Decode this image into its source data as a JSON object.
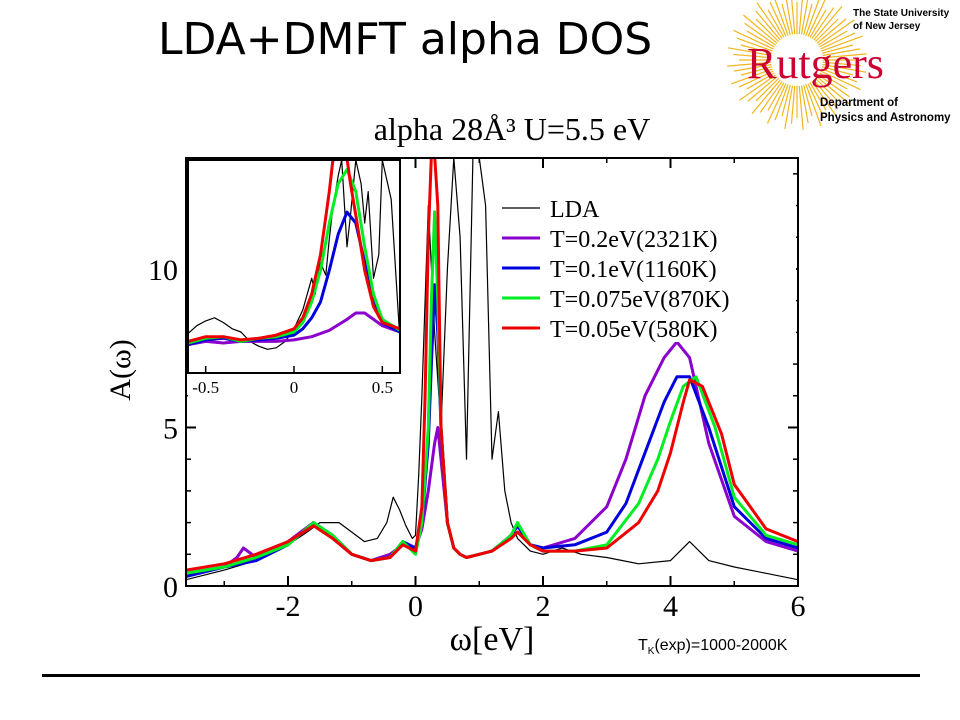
{
  "slide": {
    "title": "LDA+DMFT alpha DOS",
    "note_prefix": "T",
    "note_sub": "K",
    "note_suffix": "(exp)=1000-2000K"
  },
  "logo": {
    "line1": "The State University",
    "line2": "of New Jersey",
    "wordmark": "Rutgers",
    "dept1": "Department of",
    "dept2": "Physics and Astronomy",
    "colors": {
      "wordmark": "#cc0033",
      "sun": "#f2b51c",
      "text": "#000000"
    }
  },
  "chart_data": [
    {
      "type": "line",
      "title": "alpha  28Å³  U=5.5 eV",
      "xlabel": "ω[eV]",
      "ylabel": "A(ω)",
      "xlim": [
        -3.6,
        6.0
      ],
      "ylim": [
        0,
        13.5
      ],
      "xticks": [
        -2,
        0,
        2,
        4,
        6
      ],
      "yticks": [
        0,
        5,
        10
      ],
      "legend_position": "top-right",
      "series": [
        {
          "name": "LDA",
          "color": "#000000",
          "x": [
            -3.6,
            -3.0,
            -2.5,
            -2.0,
            -1.7,
            -1.5,
            -1.2,
            -1.0,
            -0.8,
            -0.6,
            -0.45,
            -0.35,
            -0.25,
            -0.15,
            -0.05,
            0.0,
            0.05,
            0.1,
            0.2,
            0.3,
            0.4,
            0.5,
            0.6,
            0.7,
            0.8,
            0.9,
            1.0,
            1.1,
            1.2,
            1.3,
            1.4,
            1.5,
            1.6,
            1.8,
            2.0,
            2.3,
            2.6,
            3.0,
            3.5,
            4.0,
            4.3,
            4.6,
            5.0,
            5.5,
            6.0
          ],
          "y": [
            0.2,
            0.5,
            0.8,
            1.3,
            1.7,
            2.0,
            2.0,
            1.7,
            1.4,
            1.5,
            2.0,
            2.8,
            2.4,
            1.9,
            1.5,
            1.6,
            3.5,
            6.0,
            12.0,
            8.0,
            5.0,
            10.0,
            13.5,
            11.0,
            4.0,
            13.5,
            13.5,
            12.0,
            4.0,
            5.5,
            3.0,
            2.0,
            1.5,
            1.1,
            1.0,
            1.2,
            1.0,
            0.9,
            0.7,
            0.8,
            1.4,
            0.8,
            0.6,
            0.4,
            0.2
          ]
        },
        {
          "name": "T=0.2eV(2321K)",
          "color": "#8b00cc",
          "x": [
            -3.6,
            -3.0,
            -2.8,
            -2.7,
            -2.5,
            -2.0,
            -1.6,
            -1.3,
            -1.0,
            -0.7,
            -0.4,
            -0.2,
            0.0,
            0.1,
            0.2,
            0.3,
            0.35,
            0.4,
            0.5,
            0.6,
            0.7,
            0.8,
            1.0,
            1.2,
            1.5,
            1.6,
            1.8,
            2.0,
            2.5,
            3.0,
            3.3,
            3.6,
            3.9,
            4.1,
            4.3,
            4.6,
            5.0,
            5.5,
            6.0
          ],
          "y": [
            0.4,
            0.6,
            0.9,
            1.2,
            0.9,
            1.4,
            2.0,
            1.5,
            1.0,
            0.8,
            1.0,
            1.3,
            1.2,
            1.8,
            3.0,
            4.5,
            5.0,
            4.0,
            2.0,
            1.2,
            1.0,
            0.9,
            1.0,
            1.1,
            1.6,
            1.9,
            1.3,
            1.2,
            1.5,
            2.5,
            4.0,
            6.0,
            7.2,
            7.7,
            7.2,
            4.5,
            2.2,
            1.4,
            1.1
          ]
        },
        {
          "name": "T=0.1eV(1160K)",
          "color": "#0000dd",
          "x": [
            -3.6,
            -3.0,
            -2.5,
            -2.0,
            -1.6,
            -1.3,
            -1.0,
            -0.7,
            -0.4,
            -0.2,
            0.0,
            0.1,
            0.2,
            0.25,
            0.3,
            0.35,
            0.4,
            0.5,
            0.6,
            0.7,
            0.8,
            1.0,
            1.2,
            1.5,
            1.6,
            1.8,
            2.0,
            2.5,
            3.0,
            3.3,
            3.6,
            3.9,
            4.1,
            4.3,
            4.6,
            5.0,
            5.5,
            6.0
          ],
          "y": [
            0.3,
            0.6,
            0.8,
            1.3,
            2.0,
            1.6,
            1.0,
            0.8,
            0.9,
            1.4,
            1.2,
            2.0,
            4.5,
            7.0,
            9.5,
            8.0,
            5.0,
            2.0,
            1.2,
            1.0,
            0.9,
            1.0,
            1.1,
            1.6,
            1.9,
            1.3,
            1.2,
            1.3,
            1.7,
            2.6,
            4.2,
            5.8,
            6.6,
            6.6,
            5.0,
            2.5,
            1.5,
            1.2
          ]
        },
        {
          "name": "T=0.075eV(870K)",
          "color": "#00ee22",
          "x": [
            -3.6,
            -3.0,
            -2.5,
            -2.0,
            -1.6,
            -1.3,
            -1.0,
            -0.7,
            -0.4,
            -0.2,
            0.0,
            0.1,
            0.2,
            0.25,
            0.3,
            0.35,
            0.4,
            0.5,
            0.6,
            0.7,
            0.8,
            1.0,
            1.2,
            1.5,
            1.6,
            1.8,
            2.0,
            2.5,
            3.0,
            3.5,
            3.8,
            4.0,
            4.2,
            4.4,
            4.7,
            5.0,
            5.5,
            6.0
          ],
          "y": [
            0.4,
            0.6,
            0.9,
            1.3,
            2.0,
            1.6,
            1.0,
            0.8,
            0.9,
            1.4,
            1.0,
            2.0,
            5.0,
            9.0,
            11.8,
            9.0,
            5.0,
            2.0,
            1.2,
            1.0,
            0.9,
            1.0,
            1.1,
            1.6,
            2.0,
            1.3,
            1.1,
            1.1,
            1.3,
            2.6,
            4.0,
            5.2,
            6.3,
            6.6,
            5.0,
            2.8,
            1.6,
            1.3
          ]
        },
        {
          "name": "T=0.05eV(580K)",
          "color": "#ee0000",
          "x": [
            -3.6,
            -3.0,
            -2.5,
            -2.0,
            -1.6,
            -1.3,
            -1.0,
            -0.7,
            -0.4,
            -0.2,
            0.0,
            0.1,
            0.15,
            0.2,
            0.25,
            0.3,
            0.35,
            0.4,
            0.5,
            0.6,
            0.7,
            0.8,
            1.0,
            1.2,
            1.5,
            1.6,
            1.8,
            2.0,
            2.5,
            3.0,
            3.5,
            3.8,
            4.0,
            4.2,
            4.3,
            4.5,
            4.8,
            5.0,
            5.5,
            6.0
          ],
          "y": [
            0.5,
            0.7,
            1.0,
            1.4,
            1.9,
            1.5,
            1.0,
            0.8,
            0.9,
            1.3,
            1.1,
            2.5,
            6.0,
            11.0,
            13.6,
            13.6,
            12.0,
            5.0,
            2.0,
            1.2,
            1.0,
            0.9,
            1.0,
            1.1,
            1.5,
            1.7,
            1.3,
            1.1,
            1.1,
            1.2,
            2.0,
            3.0,
            4.2,
            5.8,
            6.5,
            6.3,
            4.8,
            3.2,
            1.8,
            1.4
          ]
        }
      ]
    },
    {
      "type": "line",
      "title": "",
      "xlim": [
        -0.6,
        0.6
      ],
      "ylim": [
        0,
        13.5
      ],
      "xticks": [
        -0.5,
        0,
        0.5
      ],
      "xtick_labels": [
        "-0.5",
        "0",
        "0.5"
      ],
      "series": [
        {
          "color": "#000000",
          "x": [
            -0.6,
            -0.55,
            -0.5,
            -0.45,
            -0.4,
            -0.35,
            -0.3,
            -0.25,
            -0.2,
            -0.15,
            -0.1,
            -0.05,
            0.0,
            0.05,
            0.1,
            0.12,
            0.15,
            0.18,
            0.2,
            0.22,
            0.25,
            0.27,
            0.3,
            0.32,
            0.35,
            0.38,
            0.4,
            0.42,
            0.45,
            0.48,
            0.5,
            0.55,
            0.6
          ],
          "y": [
            2.5,
            3.0,
            3.3,
            3.5,
            3.2,
            2.8,
            2.6,
            2.0,
            1.7,
            1.5,
            1.6,
            2.0,
            2.8,
            4.0,
            6.0,
            5.0,
            7.0,
            6.2,
            8.5,
            10.5,
            12.5,
            13.5,
            8.0,
            10.0,
            13.5,
            12.0,
            9.5,
            11.5,
            6.0,
            7.5,
            13.5,
            11.0,
            2.0
          ]
        },
        {
          "color": "#8b00cc",
          "x": [
            -0.6,
            -0.5,
            -0.4,
            -0.3,
            -0.2,
            -0.1,
            0.0,
            0.1,
            0.2,
            0.3,
            0.35,
            0.4,
            0.5,
            0.6
          ],
          "y": [
            1.8,
            2.0,
            1.9,
            2.0,
            2.0,
            2.0,
            2.1,
            2.3,
            2.7,
            3.4,
            3.8,
            3.8,
            3.0,
            2.6
          ]
        },
        {
          "color": "#0000dd",
          "x": [
            -0.6,
            -0.5,
            -0.4,
            -0.3,
            -0.2,
            -0.1,
            0.0,
            0.05,
            0.1,
            0.15,
            0.2,
            0.25,
            0.3,
            0.35,
            0.4,
            0.45,
            0.5,
            0.6
          ],
          "y": [
            1.8,
            2.1,
            2.2,
            2.0,
            2.1,
            2.2,
            2.4,
            2.8,
            3.5,
            4.5,
            6.5,
            8.8,
            10.2,
            9.5,
            7.0,
            4.5,
            3.2,
            2.6
          ]
        },
        {
          "color": "#00ee22",
          "x": [
            -0.6,
            -0.5,
            -0.4,
            -0.3,
            -0.2,
            -0.1,
            0.0,
            0.05,
            0.1,
            0.15,
            0.2,
            0.25,
            0.3,
            0.35,
            0.4,
            0.45,
            0.5,
            0.6
          ],
          "y": [
            1.9,
            2.2,
            2.3,
            2.0,
            2.2,
            2.3,
            2.6,
            3.2,
            4.5,
            6.5,
            9.5,
            12.0,
            12.9,
            11.5,
            8.0,
            5.0,
            3.4,
            2.7
          ]
        },
        {
          "color": "#ee0000",
          "x": [
            -0.6,
            -0.5,
            -0.4,
            -0.3,
            -0.2,
            -0.1,
            0.0,
            0.05,
            0.1,
            0.15,
            0.2,
            0.22,
            0.25,
            0.3,
            0.32,
            0.35,
            0.4,
            0.45,
            0.5,
            0.6
          ],
          "y": [
            2.0,
            2.3,
            2.3,
            2.1,
            2.2,
            2.4,
            2.8,
            3.5,
            5.0,
            7.5,
            11.5,
            13.5,
            13.6,
            13.6,
            12.0,
            10.0,
            6.5,
            4.2,
            3.2,
            2.8
          ]
        }
      ]
    }
  ]
}
